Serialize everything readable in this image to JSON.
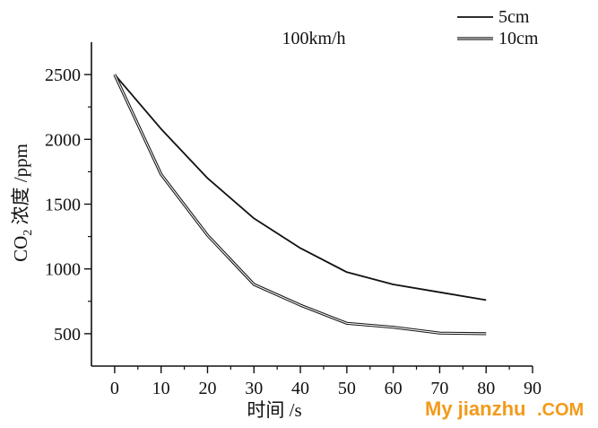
{
  "chart_data": {
    "type": "line",
    "title": "100km/h",
    "xlabel": "时间 /s",
    "ylabel_parts": {
      "pre": "CO",
      "sub": "2",
      "post": " 浓度 /ppm"
    },
    "xlim": [
      -5,
      90
    ],
    "ylim": [
      250,
      2750
    ],
    "x_ticks": [
      0,
      10,
      20,
      30,
      40,
      50,
      60,
      70,
      80,
      90
    ],
    "y_ticks": [
      500,
      1000,
      1500,
      2000,
      2500
    ],
    "legend_position": "top-right",
    "series": [
      {
        "name": "5cm",
        "style": "single",
        "x": [
          0,
          10,
          20,
          30,
          40,
          50,
          60,
          70,
          80
        ],
        "y": [
          2500,
          2080,
          1700,
          1390,
          1160,
          975,
          880,
          820,
          760
        ]
      },
      {
        "name": "10cm",
        "style": "double",
        "x": [
          0,
          10,
          20,
          30,
          40,
          50,
          60,
          70,
          80
        ],
        "y": [
          2500,
          1730,
          1260,
          880,
          720,
          580,
          550,
          505,
          500
        ]
      }
    ],
    "colors": {
      "line": "#111111",
      "axis": "#111111"
    }
  },
  "watermark": {
    "main": "My jianzhu",
    "suffix": ".COM",
    "color": "#f29a1a"
  }
}
